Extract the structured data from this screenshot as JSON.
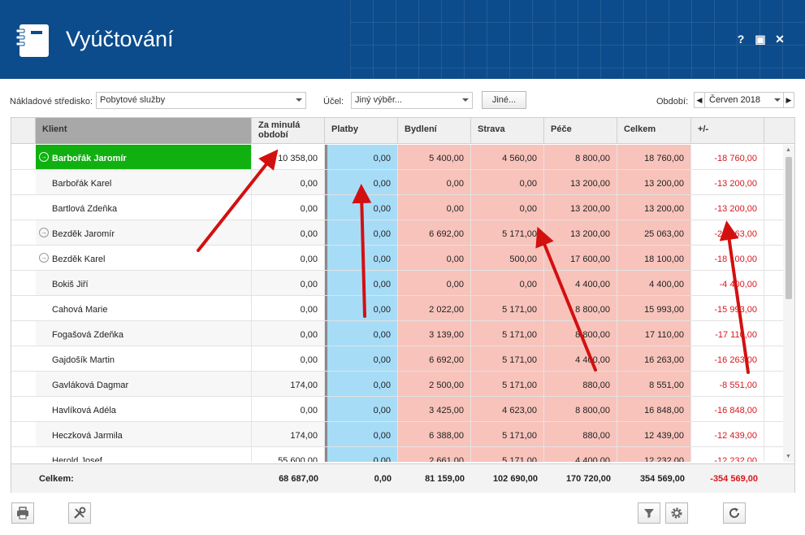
{
  "window": {
    "title": "Vyúčtování",
    "help": "?",
    "maximize": "▣",
    "close": "✕"
  },
  "toolbar": {
    "cost_center_label": "Nákladové středisko:",
    "cost_center_value": "Pobytové služby",
    "purpose_label": "Účel:",
    "purpose_value": "Jiný výběr...",
    "other_button": "Jiné...",
    "period_label": "Období:",
    "period_value": "Červen 2018",
    "period_prev": "◀",
    "period_next": "▶"
  },
  "columns": [
    "Klient",
    "Za minulá období",
    "Platby",
    "Bydlení",
    "Strava",
    "Péče",
    "Celkem",
    "+/-"
  ],
  "rows": [
    {
      "client": "Barbořák Jaromír",
      "expander": true,
      "selected": true,
      "prev": "10 358,00",
      "platby": "0,00",
      "bydleni": "5 400,00",
      "strava": "4 560,00",
      "pece": "8 800,00",
      "celkem": "18 760,00",
      "diff": "-18 760,00"
    },
    {
      "client": "Barbořák Karel",
      "expander": false,
      "prev": "0,00",
      "platby": "0,00",
      "bydleni": "0,00",
      "strava": "0,00",
      "pece": "13 200,00",
      "celkem": "13 200,00",
      "diff": "-13 200,00"
    },
    {
      "client": "Bartlová Zdeňka",
      "expander": false,
      "prev": "0,00",
      "platby": "0,00",
      "bydleni": "0,00",
      "strava": "0,00",
      "pece": "13 200,00",
      "celkem": "13 200,00",
      "diff": "-13 200,00"
    },
    {
      "client": "Bezděk Jaromír",
      "expander": true,
      "prev": "0,00",
      "platby": "0,00",
      "bydleni": "6 692,00",
      "strava": "5 171,00",
      "pece": "13 200,00",
      "celkem": "25 063,00",
      "diff": "-25 063,00"
    },
    {
      "client": "Bezděk Karel",
      "expander": true,
      "prev": "0,00",
      "platby": "0,00",
      "bydleni": "0,00",
      "strava": "500,00",
      "pece": "17 600,00",
      "celkem": "18 100,00",
      "diff": "-18 100,00"
    },
    {
      "client": "Bokiš Jiří",
      "expander": false,
      "prev": "0,00",
      "platby": "0,00",
      "bydleni": "0,00",
      "strava": "0,00",
      "pece": "4 400,00",
      "celkem": "4 400,00",
      "diff": "-4 400,00"
    },
    {
      "client": "Cahová Marie",
      "expander": false,
      "prev": "0,00",
      "platby": "0,00",
      "bydleni": "2 022,00",
      "strava": "5 171,00",
      "pece": "8 800,00",
      "celkem": "15 993,00",
      "diff": "-15 993,00"
    },
    {
      "client": "Fogašová Zdeňka",
      "expander": false,
      "prev": "0,00",
      "platby": "0,00",
      "bydleni": "3 139,00",
      "strava": "5 171,00",
      "pece": "8 800,00",
      "celkem": "17 110,00",
      "diff": "-17 110,00"
    },
    {
      "client": "Gajdošík Martin",
      "expander": false,
      "prev": "0,00",
      "platby": "0,00",
      "bydleni": "6 692,00",
      "strava": "5 171,00",
      "pece": "4 400,00",
      "celkem": "16 263,00",
      "diff": "-16 263,00"
    },
    {
      "client": "Gavláková Dagmar",
      "expander": false,
      "prev": "174,00",
      "platby": "0,00",
      "bydleni": "2 500,00",
      "strava": "5 171,00",
      "pece": "880,00",
      "celkem": "8 551,00",
      "diff": "-8 551,00"
    },
    {
      "client": "Havlíková Adéla",
      "expander": false,
      "prev": "0,00",
      "platby": "0,00",
      "bydleni": "3 425,00",
      "strava": "4 623,00",
      "pece": "8 800,00",
      "celkem": "16 848,00",
      "diff": "-16 848,00"
    },
    {
      "client": "Heczková Jarmila",
      "expander": false,
      "prev": "174,00",
      "platby": "0,00",
      "bydleni": "6 388,00",
      "strava": "5 171,00",
      "pece": "880,00",
      "celkem": "12 439,00",
      "diff": "-12 439,00"
    },
    {
      "client": "Herold Josef",
      "expander": false,
      "prev": "55 600,00",
      "platby": "0,00",
      "bydleni": "2 661,00",
      "strava": "5 171,00",
      "pece": "4 400,00",
      "celkem": "12 232,00",
      "diff": "-12 232,00"
    }
  ],
  "totals": {
    "label": "Celkem:",
    "prev": "68 687,00",
    "platby": "0,00",
    "bydleni": "81 159,00",
    "strava": "102 690,00",
    "pece": "170 720,00",
    "celkem": "354 569,00",
    "diff": "-354 569,00"
  },
  "bottom_buttons": [
    "print-icon",
    "tools-icon",
    "filter-icon",
    "settings-icon",
    "refresh-icon"
  ],
  "colors": {
    "header": "#0d4c8c",
    "selected_row": "#10b010",
    "payments": "#a7dcf7",
    "costs": "#f8c3bb",
    "negative": "#d8181c",
    "annotation_arrow": "#d31010"
  }
}
